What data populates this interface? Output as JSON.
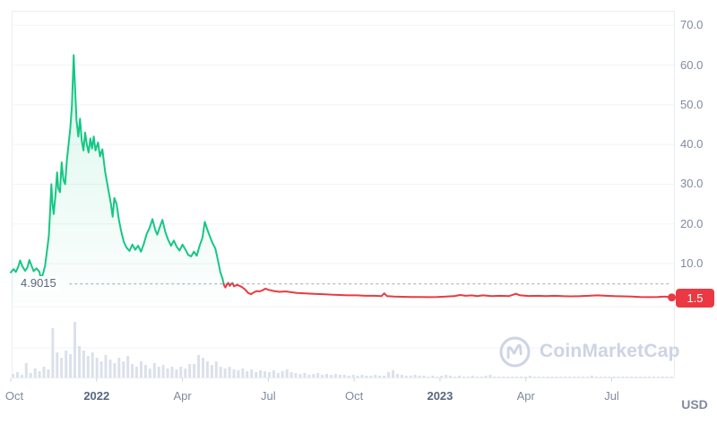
{
  "axis": {
    "unit_label": "USD",
    "y_labels": [
      "70.0",
      "60.0",
      "50.0",
      "40.0",
      "30.0",
      "20.0",
      "10.0"
    ],
    "y_values": [
      70,
      60,
      50,
      40,
      30,
      20,
      10
    ],
    "x_labels": [
      {
        "label": "Oct",
        "t": 0,
        "bold": false
      },
      {
        "label": "2022",
        "t": 3,
        "bold": true
      },
      {
        "label": "Apr",
        "t": 6,
        "bold": false
      },
      {
        "label": "Jul",
        "t": 9,
        "bold": false
      },
      {
        "label": "Oct",
        "t": 12,
        "bold": false
      },
      {
        "label": "2023",
        "t": 15,
        "bold": true
      },
      {
        "label": "Apr",
        "t": 18,
        "bold": false
      },
      {
        "label": "Jul",
        "t": 21,
        "bold": false
      }
    ]
  },
  "chart_data": {
    "type": "line",
    "title": "",
    "x_unit": "months since 2021-10-01",
    "x_start": "Oct 2021",
    "x_end": "Sep 2023",
    "ylim": [
      0,
      73
    ],
    "y_axis": {
      "ticks": [
        70,
        60,
        50,
        40,
        30,
        20,
        10
      ],
      "unit": "USD"
    },
    "threshold": {
      "value": 4.9015,
      "label": "4.9015"
    },
    "last_price": {
      "value": 1.5,
      "label": "1.5"
    },
    "rule": "line is green above threshold (period open), red below",
    "series": [
      {
        "name": "price",
        "points": [
          [
            0,
            7.8
          ],
          [
            0.1,
            8.6
          ],
          [
            0.18,
            7.9
          ],
          [
            0.26,
            9.2
          ],
          [
            0.33,
            10.8
          ],
          [
            0.4,
            9.4
          ],
          [
            0.5,
            8.2
          ],
          [
            0.58,
            9.0
          ],
          [
            0.65,
            10.9
          ],
          [
            0.72,
            9.6
          ],
          [
            0.8,
            8.1
          ],
          [
            0.9,
            8.8
          ],
          [
            1.0,
            8.0
          ],
          [
            1.05,
            6.4
          ],
          [
            1.12,
            7.3
          ],
          [
            1.2,
            9.5
          ],
          [
            1.27,
            13.5
          ],
          [
            1.33,
            17
          ],
          [
            1.38,
            24
          ],
          [
            1.42,
            30
          ],
          [
            1.46,
            25
          ],
          [
            1.5,
            22.5
          ],
          [
            1.56,
            27
          ],
          [
            1.62,
            33
          ],
          [
            1.66,
            29
          ],
          [
            1.72,
            28
          ],
          [
            1.78,
            35.5
          ],
          [
            1.84,
            31
          ],
          [
            1.9,
            30
          ],
          [
            1.96,
            36
          ],
          [
            2.02,
            40
          ],
          [
            2.08,
            44
          ],
          [
            2.14,
            50
          ],
          [
            2.2,
            62.5
          ],
          [
            2.26,
            52
          ],
          [
            2.3,
            46
          ],
          [
            2.36,
            42
          ],
          [
            2.42,
            46.5
          ],
          [
            2.48,
            41
          ],
          [
            2.54,
            38.5
          ],
          [
            2.6,
            43
          ],
          [
            2.66,
            40
          ],
          [
            2.72,
            38
          ],
          [
            2.78,
            41.5
          ],
          [
            2.84,
            39
          ],
          [
            2.9,
            42
          ],
          [
            2.96,
            38.5
          ],
          [
            3.05,
            40.5
          ],
          [
            3.12,
            37
          ],
          [
            3.2,
            38.8
          ],
          [
            3.3,
            33
          ],
          [
            3.4,
            29
          ],
          [
            3.5,
            25
          ],
          [
            3.56,
            21.8
          ],
          [
            3.62,
            26.5
          ],
          [
            3.7,
            25
          ],
          [
            3.78,
            21
          ],
          [
            3.85,
            18.5
          ],
          [
            3.95,
            15.5
          ],
          [
            4.05,
            14
          ],
          [
            4.15,
            13.2
          ],
          [
            4.25,
            14.8
          ],
          [
            4.35,
            13.5
          ],
          [
            4.45,
            14.5
          ],
          [
            4.55,
            13
          ],
          [
            4.65,
            15
          ],
          [
            4.75,
            17.5
          ],
          [
            4.85,
            19
          ],
          [
            4.95,
            21.2
          ],
          [
            5.05,
            18.5
          ],
          [
            5.12,
            17.3
          ],
          [
            5.2,
            19
          ],
          [
            5.3,
            21
          ],
          [
            5.4,
            18
          ],
          [
            5.5,
            16
          ],
          [
            5.6,
            14.5
          ],
          [
            5.7,
            15.8
          ],
          [
            5.8,
            14.2
          ],
          [
            5.9,
            13.3
          ],
          [
            6.0,
            14.8
          ],
          [
            6.1,
            13.6
          ],
          [
            6.2,
            12.2
          ],
          [
            6.3,
            11.8
          ],
          [
            6.4,
            13
          ],
          [
            6.5,
            12
          ],
          [
            6.6,
            14.5
          ],
          [
            6.7,
            16.5
          ],
          [
            6.78,
            20.5
          ],
          [
            6.86,
            18.8
          ],
          [
            6.95,
            17
          ],
          [
            7.05,
            15.2
          ],
          [
            7.15,
            13.8
          ],
          [
            7.25,
            10.5
          ],
          [
            7.32,
            8
          ],
          [
            7.4,
            6.2
          ],
          [
            7.45,
            4.6
          ],
          [
            7.5,
            4.0
          ],
          [
            7.55,
            4.7
          ],
          [
            7.6,
            5.2
          ],
          [
            7.65,
            4.4
          ],
          [
            7.7,
            4.9
          ],
          [
            7.75,
            5.1
          ],
          [
            7.8,
            4.3
          ],
          [
            7.9,
            4.6
          ],
          [
            8.0,
            4.4
          ],
          [
            8.1,
            4.0
          ],
          [
            8.2,
            3.4
          ],
          [
            8.3,
            2.6
          ],
          [
            8.4,
            2.3
          ],
          [
            8.5,
            2.8
          ],
          [
            8.6,
            3.1
          ],
          [
            8.7,
            3.0
          ],
          [
            8.8,
            3.3
          ],
          [
            8.9,
            3.7
          ],
          [
            9.0,
            3.4
          ],
          [
            9.2,
            3.1
          ],
          [
            9.4,
            2.9
          ],
          [
            9.6,
            3.0
          ],
          [
            9.8,
            2.8
          ],
          [
            10.0,
            2.6
          ],
          [
            10.3,
            2.5
          ],
          [
            10.6,
            2.4
          ],
          [
            10.9,
            2.3
          ],
          [
            11.2,
            2.2
          ],
          [
            11.5,
            2.1
          ],
          [
            11.8,
            2.0
          ],
          [
            12.1,
            2.0
          ],
          [
            12.4,
            1.9
          ],
          [
            12.7,
            1.9
          ],
          [
            12.95,
            1.8
          ],
          [
            13.05,
            2.5
          ],
          [
            13.15,
            1.8
          ],
          [
            13.4,
            1.7
          ],
          [
            13.7,
            1.65
          ],
          [
            14.0,
            1.6
          ],
          [
            14.3,
            1.6
          ],
          [
            14.6,
            1.55
          ],
          [
            14.9,
            1.6
          ],
          [
            15.2,
            1.7
          ],
          [
            15.5,
            1.8
          ],
          [
            15.7,
            2.1
          ],
          [
            15.9,
            1.9
          ],
          [
            16.1,
            2.0
          ],
          [
            16.3,
            1.8
          ],
          [
            16.5,
            2.0
          ],
          [
            16.8,
            1.8
          ],
          [
            17.1,
            1.9
          ],
          [
            17.4,
            1.8
          ],
          [
            17.65,
            2.4
          ],
          [
            17.8,
            2.0
          ],
          [
            18.1,
            1.85
          ],
          [
            18.4,
            1.9
          ],
          [
            18.7,
            1.8
          ],
          [
            19.0,
            1.9
          ],
          [
            19.3,
            1.8
          ],
          [
            19.6,
            1.75
          ],
          [
            19.9,
            1.8
          ],
          [
            20.2,
            1.9
          ],
          [
            20.5,
            2.0
          ],
          [
            20.8,
            1.9
          ],
          [
            21.1,
            1.8
          ],
          [
            21.4,
            1.75
          ],
          [
            21.7,
            1.7
          ],
          [
            22.0,
            1.6
          ],
          [
            22.3,
            1.55
          ],
          [
            22.6,
            1.6
          ],
          [
            22.85,
            1.7
          ],
          [
            23.0,
            1.6
          ],
          [
            23.1,
            1.5
          ]
        ]
      }
    ],
    "volume_bars": [
      4,
      6,
      3,
      16,
      5,
      10,
      7,
      12,
      9,
      55,
      28,
      22,
      30,
      26,
      62,
      35,
      30,
      24,
      28,
      22,
      18,
      25,
      20,
      16,
      22,
      18,
      24,
      15,
      12,
      18,
      14,
      10,
      16,
      12,
      14,
      10,
      12,
      9,
      12,
      10,
      15,
      15,
      25,
      22,
      18,
      14,
      18,
      12,
      10,
      12,
      9,
      8,
      10,
      7,
      9,
      6,
      8,
      7,
      6,
      8,
      5,
      7,
      9,
      6,
      5,
      4,
      5,
      3,
      4,
      5,
      3,
      4,
      3,
      4,
      3,
      3,
      2,
      3,
      2,
      3,
      2,
      2,
      3,
      2,
      2,
      6,
      8,
      4,
      3,
      2,
      2,
      3,
      2,
      2,
      1,
      2,
      1,
      2,
      3,
      2,
      1,
      2,
      1,
      1,
      2,
      1,
      1,
      2,
      3,
      1,
      1,
      1,
      1,
      1,
      1,
      1,
      1,
      2,
      1,
      1,
      1,
      1,
      1,
      1,
      1,
      1,
      1,
      1,
      1,
      1,
      1,
      2,
      1,
      1,
      1,
      1,
      1,
      1,
      1,
      1,
      1,
      1,
      1,
      1,
      1,
      1,
      1,
      1,
      1,
      1
    ]
  },
  "watermark": {
    "text": "CoinMarketCap"
  },
  "colors": {
    "up": "#16c784",
    "down": "#ea3943",
    "grid": "#f0f3f7",
    "border": "#e9edf3",
    "tick": "#ccd3de",
    "axis_text": "#808a9d",
    "year_text": "#58667e",
    "volume": "#dbe1eb",
    "dotted": "#b0bac9",
    "watermark": "#cdd4e3",
    "badge_bg": "#ea3943"
  }
}
